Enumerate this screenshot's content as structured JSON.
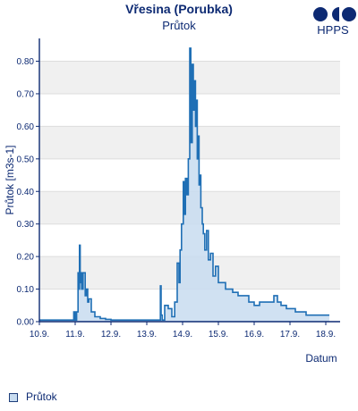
{
  "header": {
    "title": "Vřesina (Porubka)",
    "subtitle": "Průtok"
  },
  "logo": {
    "text": "HPPS",
    "color": "#0d2a73"
  },
  "legend": {
    "label": "Průtok"
  },
  "colors": {
    "axis": "#0d2a73",
    "line": "#1f6fb5",
    "fill": "#c8dcf0",
    "band": "#f0f0f0"
  },
  "chart_data": {
    "type": "area",
    "ylabel": "Průtok [m3s-1]",
    "xlabel": "Datum",
    "ylim": [
      0,
      0.87
    ],
    "xlim": [
      0,
      8.4
    ],
    "x_ticks": [
      "10.9.",
      "11.9.",
      "12.9.",
      "13.9.",
      "14.9.",
      "15.9.",
      "16.9.",
      "17.9.",
      "18.9."
    ],
    "y_ticks": [
      "0.00",
      "0.10",
      "0.20",
      "0.30",
      "0.40",
      "0.50",
      "0.60",
      "0.70",
      "0.80"
    ],
    "y_tick_values": [
      0,
      0.1,
      0.2,
      0.3,
      0.4,
      0.5,
      0.6,
      0.7,
      0.8
    ],
    "grid": "alternating horizontal bands",
    "series": [
      {
        "name": "Průtok",
        "x": [
          0,
          0.5,
          0.9,
          0.96,
          1.0,
          1.04,
          1.08,
          1.1,
          1.12,
          1.14,
          1.16,
          1.18,
          1.22,
          1.25,
          1.28,
          1.32,
          1.35,
          1.38,
          1.45,
          1.55,
          1.7,
          1.85,
          2.0,
          2.3,
          2.7,
          3.2,
          3.35,
          3.38,
          3.4,
          3.43,
          3.5,
          3.6,
          3.7,
          3.78,
          3.85,
          3.9,
          3.93,
          3.97,
          4.02,
          4.05,
          4.08,
          4.12,
          4.16,
          4.2,
          4.23,
          4.27,
          4.3,
          4.33,
          4.36,
          4.38,
          4.41,
          4.43,
          4.46,
          4.48,
          4.51,
          4.55,
          4.58,
          4.62,
          4.67,
          4.72,
          4.78,
          4.85,
          4.92,
          5.0,
          5.1,
          5.2,
          5.3,
          5.4,
          5.55,
          5.7,
          5.85,
          6.0,
          6.15,
          6.3,
          6.45,
          6.55,
          6.65,
          6.75,
          6.9,
          7.0,
          7.15,
          7.3,
          7.45,
          7.6,
          7.75,
          7.9,
          8.0,
          8.1
        ],
        "values": [
          0.005,
          0.005,
          0.005,
          0.03,
          0.005,
          0.03,
          0.15,
          0.1,
          0.235,
          0.12,
          0.15,
          0.1,
          0.15,
          0.15,
          0.08,
          0.1,
          0.06,
          0.07,
          0.03,
          0.015,
          0.01,
          0.007,
          0.005,
          0.005,
          0.005,
          0.005,
          0.005,
          0.11,
          0.02,
          0.005,
          0.05,
          0.04,
          0.015,
          0.06,
          0.18,
          0.12,
          0.22,
          0.3,
          0.43,
          0.33,
          0.44,
          0.39,
          0.5,
          0.84,
          0.55,
          0.79,
          0.65,
          0.74,
          0.6,
          0.68,
          0.5,
          0.57,
          0.42,
          0.45,
          0.35,
          0.3,
          0.27,
          0.22,
          0.28,
          0.19,
          0.21,
          0.14,
          0.17,
          0.12,
          0.12,
          0.1,
          0.1,
          0.09,
          0.08,
          0.08,
          0.06,
          0.05,
          0.06,
          0.06,
          0.06,
          0.08,
          0.06,
          0.05,
          0.04,
          0.04,
          0.03,
          0.03,
          0.02,
          0.02,
          0.02,
          0.02,
          0.02,
          0.02
        ]
      }
    ]
  }
}
